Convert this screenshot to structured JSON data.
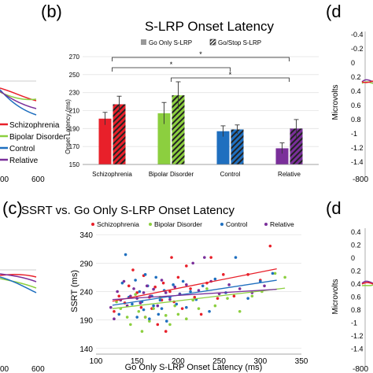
{
  "panel_labels": {
    "b": "(b)",
    "c": "(c)",
    "d_top": "(d",
    "d_bottom": "(d"
  },
  "left_fragments": {
    "legend": [
      "Schizophrenia",
      "Bipolar Disorder",
      "Control",
      "Relative"
    ],
    "x_ticks_top": [
      "00",
      "600"
    ],
    "x_ticks_bottom": [
      "00",
      "600"
    ]
  },
  "right_fragments": {
    "ylabel": "Microvolts",
    "ticks_top": [
      "-0.4",
      "-0.2",
      "0",
      "0.2",
      "0.4",
      "0.6",
      "0.8",
      "-1",
      "-1.2",
      "-1.4"
    ],
    "ticks_bottom": [
      "0.4",
      "0.2",
      "0",
      "0.2",
      "0.4",
      "0.6",
      "0.8",
      "-1",
      "-1.2",
      "-1.4"
    ],
    "xtick_top": "-800",
    "xtick_bottom": "-800"
  },
  "colors": {
    "schizophrenia": "#e8202a",
    "bipolar": "#8ccf3f",
    "control": "#1f6fbf",
    "relative": "#7a2f9a"
  },
  "chart_data": [
    {
      "type": "bar",
      "title": "S-LRP Onset Latency",
      "ylabel": "Onset Latency (ms)",
      "xlabel": "",
      "ylim": [
        150,
        270
      ],
      "yticks": [
        150,
        170,
        190,
        210,
        230,
        250,
        270
      ],
      "categories": [
        "Schizophrenia",
        "Bipolar Disorder",
        "Control",
        "Relative"
      ],
      "series": [
        {
          "name": "Go Only S-LRP",
          "values": [
            201,
            207,
            187,
            168
          ],
          "errors": [
            7,
            12,
            6,
            6
          ],
          "pattern": "solid"
        },
        {
          "name": "Go/Stop S-LRP",
          "values": [
            217,
            227,
            189,
            190
          ],
          "errors": [
            9,
            15,
            5,
            10
          ],
          "pattern": "hatched"
        }
      ],
      "significance": [
        "*",
        "*",
        "*"
      ]
    },
    {
      "type": "scatter",
      "title": "SSRT vs. Go Only S-LRP Onset Latency",
      "xlabel": "Go Only S-LRP Onset Latency (ms)",
      "ylabel": "SSRT (ms)",
      "xlim": [
        100,
        350
      ],
      "ylim": [
        130,
        350
      ],
      "xticks": [
        100,
        150,
        200,
        250,
        300,
        350
      ],
      "yticks": [
        140,
        190,
        240,
        290,
        340
      ],
      "series": [
        {
          "name": "Schizophrenia",
          "points": [
            [
              122,
              205
            ],
            [
              128,
              232
            ],
            [
              135,
              220
            ],
            [
              140,
              250
            ],
            [
              145,
              278
            ],
            [
              150,
              238
            ],
            [
              155,
              212
            ],
            [
              158,
              268
            ],
            [
              160,
              195
            ],
            [
              165,
              230
            ],
            [
              168,
              210
            ],
            [
              172,
              248
            ],
            [
              175,
              182
            ],
            [
              180,
              225
            ],
            [
              182,
              255
            ],
            [
              185,
              170
            ],
            [
              190,
              240
            ],
            [
              192,
              300
            ],
            [
              195,
              222
            ],
            [
              200,
              265
            ],
            [
              205,
              210
            ],
            [
              210,
              285
            ],
            [
              215,
              245
            ],
            [
              220,
              230
            ],
            [
              228,
              200
            ],
            [
              235,
              255
            ],
            [
              240,
              300
            ],
            [
              248,
              228
            ],
            [
              255,
              270
            ],
            [
              268,
              232
            ],
            [
              285,
              270
            ],
            [
              300,
              260
            ],
            [
              312,
              320
            ]
          ],
          "trend": [
            [
              120,
              223
            ],
            [
              320,
              280
            ]
          ]
        },
        {
          "name": "Bipolar Disorder",
          "points": [
            [
              125,
              222
            ],
            [
              130,
              210
            ],
            [
              138,
              195
            ],
            [
              142,
              182
            ],
            [
              148,
              235
            ],
            [
              152,
              205
            ],
            [
              156,
              170
            ],
            [
              160,
              195
            ],
            [
              165,
              188
            ],
            [
              170,
              210
            ],
            [
              178,
              230
            ],
            [
              185,
              198
            ],
            [
              190,
              182
            ],
            [
              196,
              215
            ],
            [
              200,
              200
            ],
            [
              210,
              192
            ],
            [
              218,
              225
            ],
            [
              225,
              210
            ],
            [
              235,
              245
            ],
            [
              245,
              215
            ],
            [
              260,
              228
            ],
            [
              275,
              205
            ],
            [
              290,
              232
            ],
            [
              302,
              240
            ],
            [
              318,
              272
            ],
            [
              330,
              265
            ]
          ],
          "trend": [
            [
              120,
              210
            ],
            [
              330,
              246
            ]
          ]
        },
        {
          "name": "Control",
          "points": [
            [
              128,
              200
            ],
            [
              132,
              255
            ],
            [
              136,
              305
            ],
            [
              140,
              230
            ],
            [
              144,
              218
            ],
            [
              148,
              260
            ],
            [
              150,
              195
            ],
            [
              153,
              240
            ],
            [
              156,
              222
            ],
            [
              158,
              208
            ],
            [
              160,
              270
            ],
            [
              163,
              250
            ],
            [
              165,
              192
            ],
            [
              168,
              232
            ],
            [
              170,
              215
            ],
            [
              173,
              265
            ],
            [
              176,
              200
            ],
            [
              178,
              225
            ],
            [
              180,
              210
            ],
            [
              183,
              242
            ],
            [
              186,
              188
            ],
            [
              190,
              230
            ],
            [
              194,
              252
            ],
            [
              198,
              218
            ],
            [
              202,
              236
            ],
            [
              206,
              258
            ],
            [
              210,
              212
            ],
            [
              215,
              240
            ],
            [
              222,
              226
            ],
            [
              230,
              250
            ],
            [
              238,
              205
            ],
            [
              245,
              262
            ],
            [
              258,
              238
            ],
            [
              270,
              300
            ],
            [
              285,
              228
            ],
            [
              300,
              258
            ],
            [
              315,
              272
            ]
          ],
          "trend": [
            [
              120,
              216
            ],
            [
              320,
              260
            ]
          ]
        },
        {
          "name": "Relative",
          "points": [
            [
              118,
              212
            ],
            [
              122,
              192
            ],
            [
              126,
              240
            ],
            [
              130,
              225
            ],
            [
              134,
              258
            ],
            [
              138,
              215
            ],
            [
              142,
              232
            ],
            [
              146,
              245
            ],
            [
              150,
              228
            ],
            [
              154,
              220
            ],
            [
              158,
              238
            ],
            [
              162,
              250
            ],
            [
              166,
              232
            ],
            [
              170,
              244
            ],
            [
              175,
              215
            ],
            [
              180,
              260
            ],
            [
              185,
              238
            ],
            [
              190,
              226
            ],
            [
              196,
              248
            ],
            [
              202,
              235
            ],
            [
              210,
              252
            ],
            [
              218,
              290
            ],
            [
              225,
              242
            ],
            [
              232,
              300
            ],
            [
              240,
              258
            ],
            [
              250,
              236
            ],
            [
              262,
              252
            ],
            [
              275,
              245
            ],
            [
              290,
              238
            ],
            [
              305,
              250
            ]
          ],
          "trend": [
            [
              120,
              226
            ],
            [
              320,
              244
            ]
          ]
        }
      ]
    }
  ]
}
